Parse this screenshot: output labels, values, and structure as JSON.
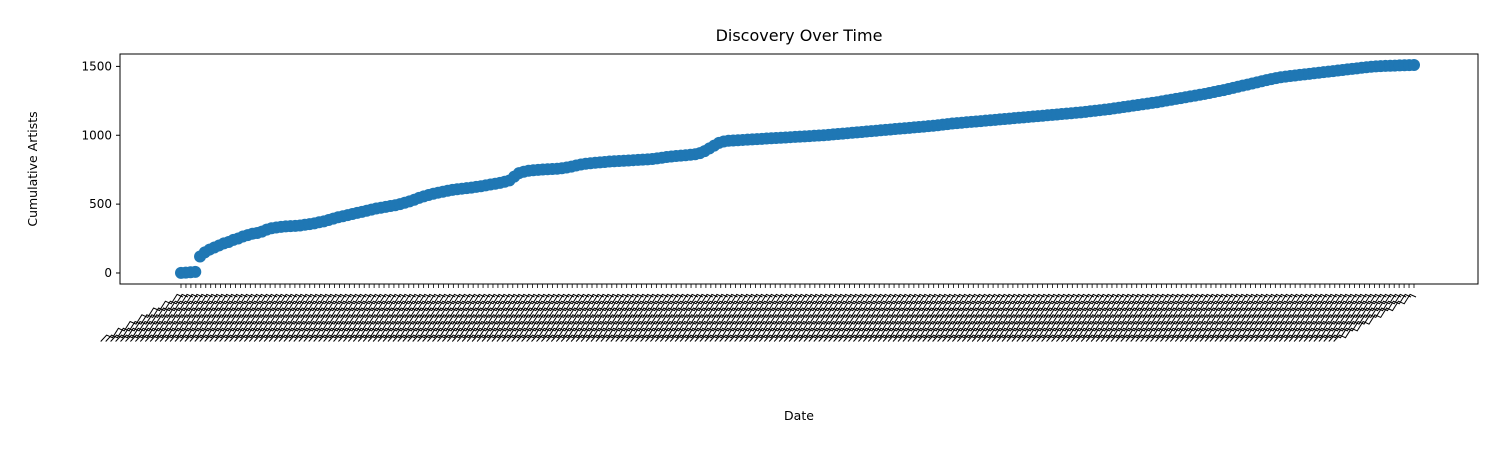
{
  "chart_data": {
    "type": "scatter",
    "title": "Discovery Over Time",
    "xlabel": "Date",
    "ylabel": "Cumulative Artists",
    "ylim": [
      -80,
      1590
    ],
    "yticks": [
      0,
      500,
      1000,
      1500
    ],
    "x_tick_count": 250,
    "x_tick_labels_note": "illegible, overlapping rotated date labels",
    "series": [
      {
        "color": "#1f77b4",
        "marker": "circle",
        "values": [
          1,
          3,
          5,
          8,
          120,
          150,
          170,
          185,
          200,
          215,
          225,
          240,
          250,
          265,
          275,
          285,
          290,
          300,
          315,
          325,
          330,
          335,
          338,
          340,
          342,
          345,
          350,
          355,
          360,
          368,
          375,
          385,
          395,
          405,
          412,
          420,
          428,
          436,
          444,
          452,
          460,
          468,
          474,
          480,
          486,
          492,
          500,
          510,
          520,
          532,
          545,
          556,
          566,
          575,
          583,
          590,
          597,
          603,
          608,
          612,
          616,
          620,
          625,
          630,
          636,
          642,
          648,
          654,
          662,
          672,
          700,
          725,
          735,
          742,
          746,
          749,
          751,
          753,
          755,
          757,
          760,
          766,
          772,
          780,
          788,
          793,
          797,
          800,
          803,
          806,
          809,
          811,
          813,
          815,
          817,
          819,
          821,
          823,
          825,
          828,
          832,
          837,
          842,
          846,
          849,
          852,
          855,
          858,
          862,
          870,
          885,
          905,
          925,
          945,
          955,
          960,
          962,
          964,
          966,
          968,
          970,
          972,
          974,
          976,
          978,
          980,
          982,
          984,
          986,
          988,
          990,
          992,
          994,
          996,
          998,
          1000,
          1003,
          1006,
          1009,
          1012,
          1015,
          1018,
          1021,
          1024,
          1027,
          1030,
          1033,
          1036,
          1039,
          1042,
          1045,
          1048,
          1051,
          1054,
          1057,
          1060,
          1063,
          1066,
          1069,
          1073,
          1077,
          1081,
          1085,
          1088,
          1091,
          1094,
          1097,
          1100,
          1103,
          1106,
          1109,
          1112,
          1115,
          1118,
          1121,
          1124,
          1127,
          1130,
          1133,
          1136,
          1139,
          1142,
          1145,
          1148,
          1151,
          1154,
          1157,
          1160,
          1163,
          1166,
          1170,
          1174,
          1178,
          1182,
          1186,
          1190,
          1195,
          1200,
          1205,
          1210,
          1215,
          1220,
          1225,
          1230,
          1235,
          1240,
          1246,
          1252,
          1258,
          1264,
          1270,
          1276,
          1282,
          1288,
          1294,
          1300,
          1307,
          1314,
          1321,
          1328,
          1336,
          1344,
          1352,
          1360,
          1368,
          1376,
          1384,
          1392,
          1400,
          1408,
          1415,
          1421,
          1426,
          1430,
          1434,
          1438,
          1442,
          1446,
          1450,
          1454,
          1458,
          1462,
          1466,
          1470,
          1474,
          1478,
          1482,
          1486,
          1490,
          1494,
          1497,
          1500,
          1502,
          1504,
          1505,
          1506,
          1507,
          1508,
          1509,
          1510
        ]
      }
    ]
  }
}
